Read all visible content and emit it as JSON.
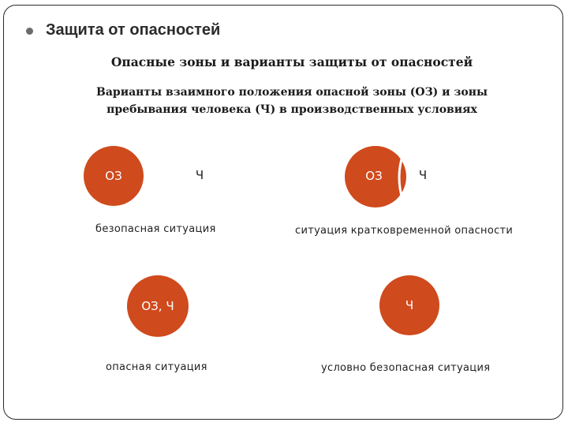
{
  "heading": "Защита от опасностей",
  "subheading": "Опасные зоны и варианты защиты от опасностей",
  "description": {
    "line1": "Варианты взаимного положения опасной зоны (ОЗ) и зоны",
    "line2": "пребывания человека (Ч) в производственных условиях"
  },
  "scenarios": [
    {
      "zone_label": "ОЗ",
      "human_label": "Ч",
      "caption": "безопасная ситуация"
    },
    {
      "zone_label": "ОЗ",
      "human_label": "Ч",
      "caption": "ситуация кратковременной опасности"
    },
    {
      "zone_label": "ОЗ, Ч",
      "caption": "опасная ситуация"
    },
    {
      "zone_label": "Ч",
      "caption": "условно безопасная ситуация"
    }
  ],
  "colors": {
    "zone_fill": "#cf4a1d",
    "frame": "#2a2a2a",
    "bullet": "#6b6b6b"
  }
}
